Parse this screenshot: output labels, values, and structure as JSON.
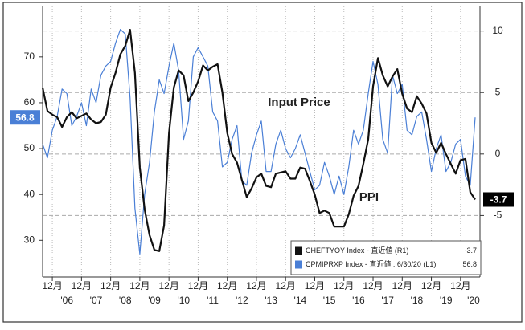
{
  "chart_data": {
    "type": "line",
    "annotations": [
      "Input Price",
      "PPI"
    ],
    "x": [
      "2005-08",
      "2005-10",
      "2005-12",
      "2006-02",
      "2006-04",
      "2006-06",
      "2006-08",
      "2006-10",
      "2006-12",
      "2007-02",
      "2007-04",
      "2007-06",
      "2007-08",
      "2007-10",
      "2007-12",
      "2008-02",
      "2008-04",
      "2008-06",
      "2008-08",
      "2008-10",
      "2008-12",
      "2009-02",
      "2009-04",
      "2009-06",
      "2009-08",
      "2009-10",
      "2009-12",
      "2010-02",
      "2010-04",
      "2010-06",
      "2010-08",
      "2010-10",
      "2010-12",
      "2011-02",
      "2011-04",
      "2011-06",
      "2011-08",
      "2011-10",
      "2011-12",
      "2012-02",
      "2012-04",
      "2012-06",
      "2012-08",
      "2012-10",
      "2012-12",
      "2013-02",
      "2013-04",
      "2013-06",
      "2013-08",
      "2013-10",
      "2013-12",
      "2014-02",
      "2014-04",
      "2014-06",
      "2014-08",
      "2014-10",
      "2014-12",
      "2015-02",
      "2015-04",
      "2015-06",
      "2015-08",
      "2015-10",
      "2015-12",
      "2016-02",
      "2016-04",
      "2016-06",
      "2016-08",
      "2016-10",
      "2016-12",
      "2017-02",
      "2017-04",
      "2017-06",
      "2017-08",
      "2017-10",
      "2017-12",
      "2018-02",
      "2018-04",
      "2018-06",
      "2018-08",
      "2018-10",
      "2018-12",
      "2019-02",
      "2019-04",
      "2019-06",
      "2019-08",
      "2019-10",
      "2019-12",
      "2020-02",
      "2020-04",
      "2020-06"
    ],
    "series": [
      {
        "name": "CHEFTYOY Index - 直近値 (R1)",
        "color": "#111111",
        "axis": "y2",
        "values": [
          5.4,
          3.5,
          3.2,
          3.0,
          2.2,
          3.0,
          3.4,
          2.9,
          3.1,
          3.3,
          2.8,
          2.5,
          2.6,
          3.2,
          5.4,
          6.6,
          8.1,
          8.8,
          10.1,
          6.6,
          -1.1,
          -4.5,
          -6.6,
          -7.8,
          -7.9,
          -5.8,
          1.7,
          5.4,
          6.8,
          6.4,
          4.3,
          5.0,
          5.9,
          7.2,
          6.8,
          7.1,
          7.3,
          5.0,
          1.7,
          0.0,
          -0.7,
          -2.1,
          -3.5,
          -2.8,
          -1.9,
          -1.6,
          -2.6,
          -2.7,
          -1.6,
          -1.5,
          -1.4,
          -2.0,
          -2.0,
          -1.1,
          -1.2,
          -2.2,
          -3.3,
          -4.8,
          -4.6,
          -4.8,
          -5.9,
          -5.9,
          -5.9,
          -4.9,
          -3.4,
          -2.6,
          -0.8,
          1.2,
          5.5,
          7.8,
          6.4,
          5.5,
          6.3,
          6.9,
          4.9,
          3.7,
          3.4,
          4.7,
          4.1,
          3.3,
          0.9,
          0.1,
          0.9,
          0.0,
          -0.8,
          -1.6,
          -0.5,
          -0.4,
          -3.1,
          -3.7
        ]
      },
      {
        "name": "CPMIPRXP Index - 直近値 : 6/30/20 (L1)",
        "color": "#4a7fd6",
        "axis": "y",
        "values": [
          51,
          48,
          54,
          57,
          63,
          62,
          55,
          57,
          60,
          55,
          63,
          60,
          66,
          68,
          69,
          73,
          76,
          75,
          61,
          37,
          27,
          40,
          47,
          58,
          65,
          62,
          68,
          73,
          67,
          52,
          56,
          70,
          72,
          70,
          68,
          58,
          56,
          46,
          47,
          52,
          55,
          43,
          42,
          49,
          53,
          56,
          45,
          45,
          51,
          54,
          50,
          48,
          50,
          53,
          49,
          45,
          41,
          42,
          47,
          44,
          40,
          44,
          40,
          46,
          54,
          51,
          54,
          62,
          69,
          64,
          52,
          49,
          66,
          62,
          64,
          54,
          53,
          57,
          58,
          52,
          45,
          50,
          53,
          45,
          47,
          51,
          52,
          44,
          42,
          56.8
        ]
      }
    ],
    "xlim": [
      "2005-08",
      "2020-08"
    ],
    "xticks": [
      {
        "value": "2005-12",
        "label": "12月"
      },
      {
        "value": "2006-12",
        "label": "12月"
      },
      {
        "value": "2007-12",
        "label": "12月"
      },
      {
        "value": "2008-12",
        "label": "12月"
      },
      {
        "value": "2009-12",
        "label": "12月"
      },
      {
        "value": "2010-12",
        "label": "12月"
      },
      {
        "value": "2011-12",
        "label": "12月"
      },
      {
        "value": "2012-12",
        "label": "12月"
      },
      {
        "value": "2013-12",
        "label": "12月"
      },
      {
        "value": "2014-12",
        "label": "12月"
      },
      {
        "value": "2015-12",
        "label": "12月"
      },
      {
        "value": "2016-12",
        "label": "12月"
      },
      {
        "value": "2017-12",
        "label": "12月"
      },
      {
        "value": "2018-12",
        "label": "12月"
      },
      {
        "value": "2019-12",
        "label": "12月"
      }
    ],
    "x_year_labels": [
      "'06",
      "'07",
      "'08",
      "'09",
      "'10",
      "'11",
      "'12",
      "'13",
      "'14",
      "'15",
      "'16",
      "'17",
      "'18",
      "'19",
      "'20"
    ],
    "ylim": [
      22,
      81
    ],
    "yticks": [
      30,
      40,
      50,
      60,
      70
    ],
    "y2lim": [
      -10,
      12
    ],
    "y2ticks": [
      -5,
      0,
      5,
      10
    ],
    "grid": true,
    "legend": "lower right"
  }
}
